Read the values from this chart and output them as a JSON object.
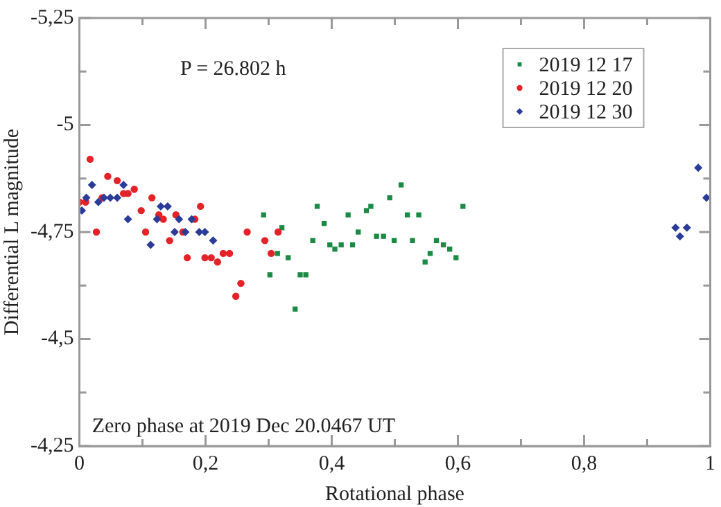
{
  "chart_data": {
    "type": "scatter",
    "xlabel": "Rotational phase",
    "ylabel": "Differential L magnitude",
    "annotations": [
      "P = 26.802 h",
      "Zero phase at 2019 Dec 20.0467 UT"
    ],
    "xlim": [
      0,
      1
    ],
    "xticks": [
      0,
      {
        "value": 0.1,
        "label": null
      },
      {
        "value": 0.2,
        "label": "0,2"
      },
      {
        "value": 0.3,
        "label": null
      },
      {
        "value": 0.4,
        "label": "0,4"
      },
      {
        "value": 0.5,
        "label": null
      },
      {
        "value": 0.6,
        "label": "0,6"
      },
      {
        "value": 0.7,
        "label": null
      },
      {
        "value": 0.8,
        "label": "0,8"
      },
      {
        "value": 0.9,
        "label": null
      },
      1
    ],
    "ylim": [
      -4.25,
      -5.25
    ],
    "yticks": [
      {
        "value": -5.25,
        "label": "-5,25"
      },
      {
        "value": -5.125,
        "label": null
      },
      -5,
      {
        "value": -4.875,
        "label": null
      },
      {
        "value": -4.75,
        "label": "-4,75"
      },
      {
        "value": -4.625,
        "label": null
      },
      {
        "value": -4.5,
        "label": "-4,5"
      },
      {
        "value": -4.375,
        "label": null
      },
      {
        "value": -4.25,
        "label": "-4,25"
      }
    ],
    "grid": false,
    "legend": "top right",
    "series": [
      {
        "name": "2019 12 17",
        "color": "#1b8a45",
        "marker": "square",
        "x": [
          0.292,
          0.302,
          0.314,
          0.321,
          0.331,
          0.342,
          0.35,
          0.359,
          0.37,
          0.377,
          0.388,
          0.397,
          0.405,
          0.415,
          0.426,
          0.433,
          0.442,
          0.455,
          0.462,
          0.471,
          0.482,
          0.492,
          0.499,
          0.51,
          0.52,
          0.528,
          0.538,
          0.548,
          0.556,
          0.566,
          0.577,
          0.587,
          0.597,
          0.608
        ],
        "values": [
          -4.79,
          -4.65,
          -4.7,
          -4.76,
          -4.69,
          -4.57,
          -4.65,
          -4.65,
          -4.73,
          -4.81,
          -4.77,
          -4.72,
          -4.71,
          -4.72,
          -4.79,
          -4.72,
          -4.75,
          -4.8,
          -4.81,
          -4.74,
          -4.74,
          -4.83,
          -4.73,
          -4.86,
          -4.79,
          -4.73,
          -4.79,
          -4.68,
          -4.7,
          -4.73,
          -4.72,
          -4.71,
          -4.69,
          -4.81
        ]
      },
      {
        "name": "2019 12 20",
        "color": "#e52228",
        "marker": "circle",
        "x": [
          0.0,
          0.01,
          0.017,
          0.027,
          0.036,
          0.045,
          0.06,
          0.07,
          0.077,
          0.087,
          0.098,
          0.105,
          0.115,
          0.126,
          0.133,
          0.143,
          0.153,
          0.164,
          0.171,
          0.183,
          0.192,
          0.199,
          0.209,
          0.219,
          0.228,
          0.238,
          0.248,
          0.256,
          0.266,
          0.294,
          0.304,
          0.315
        ],
        "values": [
          -4.82,
          -4.82,
          -4.92,
          -4.75,
          -4.83,
          -4.88,
          -4.87,
          -4.84,
          -4.84,
          -4.85,
          -4.8,
          -4.75,
          -4.83,
          -4.79,
          -4.78,
          -4.73,
          -4.79,
          -4.75,
          -4.69,
          -4.78,
          -4.81,
          -4.69,
          -4.69,
          -4.68,
          -4.7,
          -4.7,
          -4.6,
          -4.63,
          -4.75,
          -4.73,
          -4.7,
          -4.75
        ]
      },
      {
        "name": "2019 12 30",
        "color": "#2b3c98",
        "marker": "diamond",
        "x": [
          0.004,
          0.011,
          0.02,
          0.03,
          0.039,
          0.049,
          0.06,
          0.07,
          0.077,
          0.113,
          0.123,
          0.129,
          0.14,
          0.151,
          0.158,
          0.168,
          0.178,
          0.19,
          0.199,
          0.212,
          0.945,
          0.952,
          0.963,
          0.981,
          0.994
        ],
        "values": [
          -4.8,
          -4.83,
          -4.86,
          -4.82,
          -4.83,
          -4.83,
          -4.83,
          -4.86,
          -4.78,
          -4.72,
          -4.78,
          -4.81,
          -4.81,
          -4.75,
          -4.78,
          -4.75,
          -4.78,
          -4.75,
          -4.75,
          -4.73,
          -4.76,
          -4.74,
          -4.76,
          -4.9,
          -4.83
        ]
      }
    ]
  }
}
